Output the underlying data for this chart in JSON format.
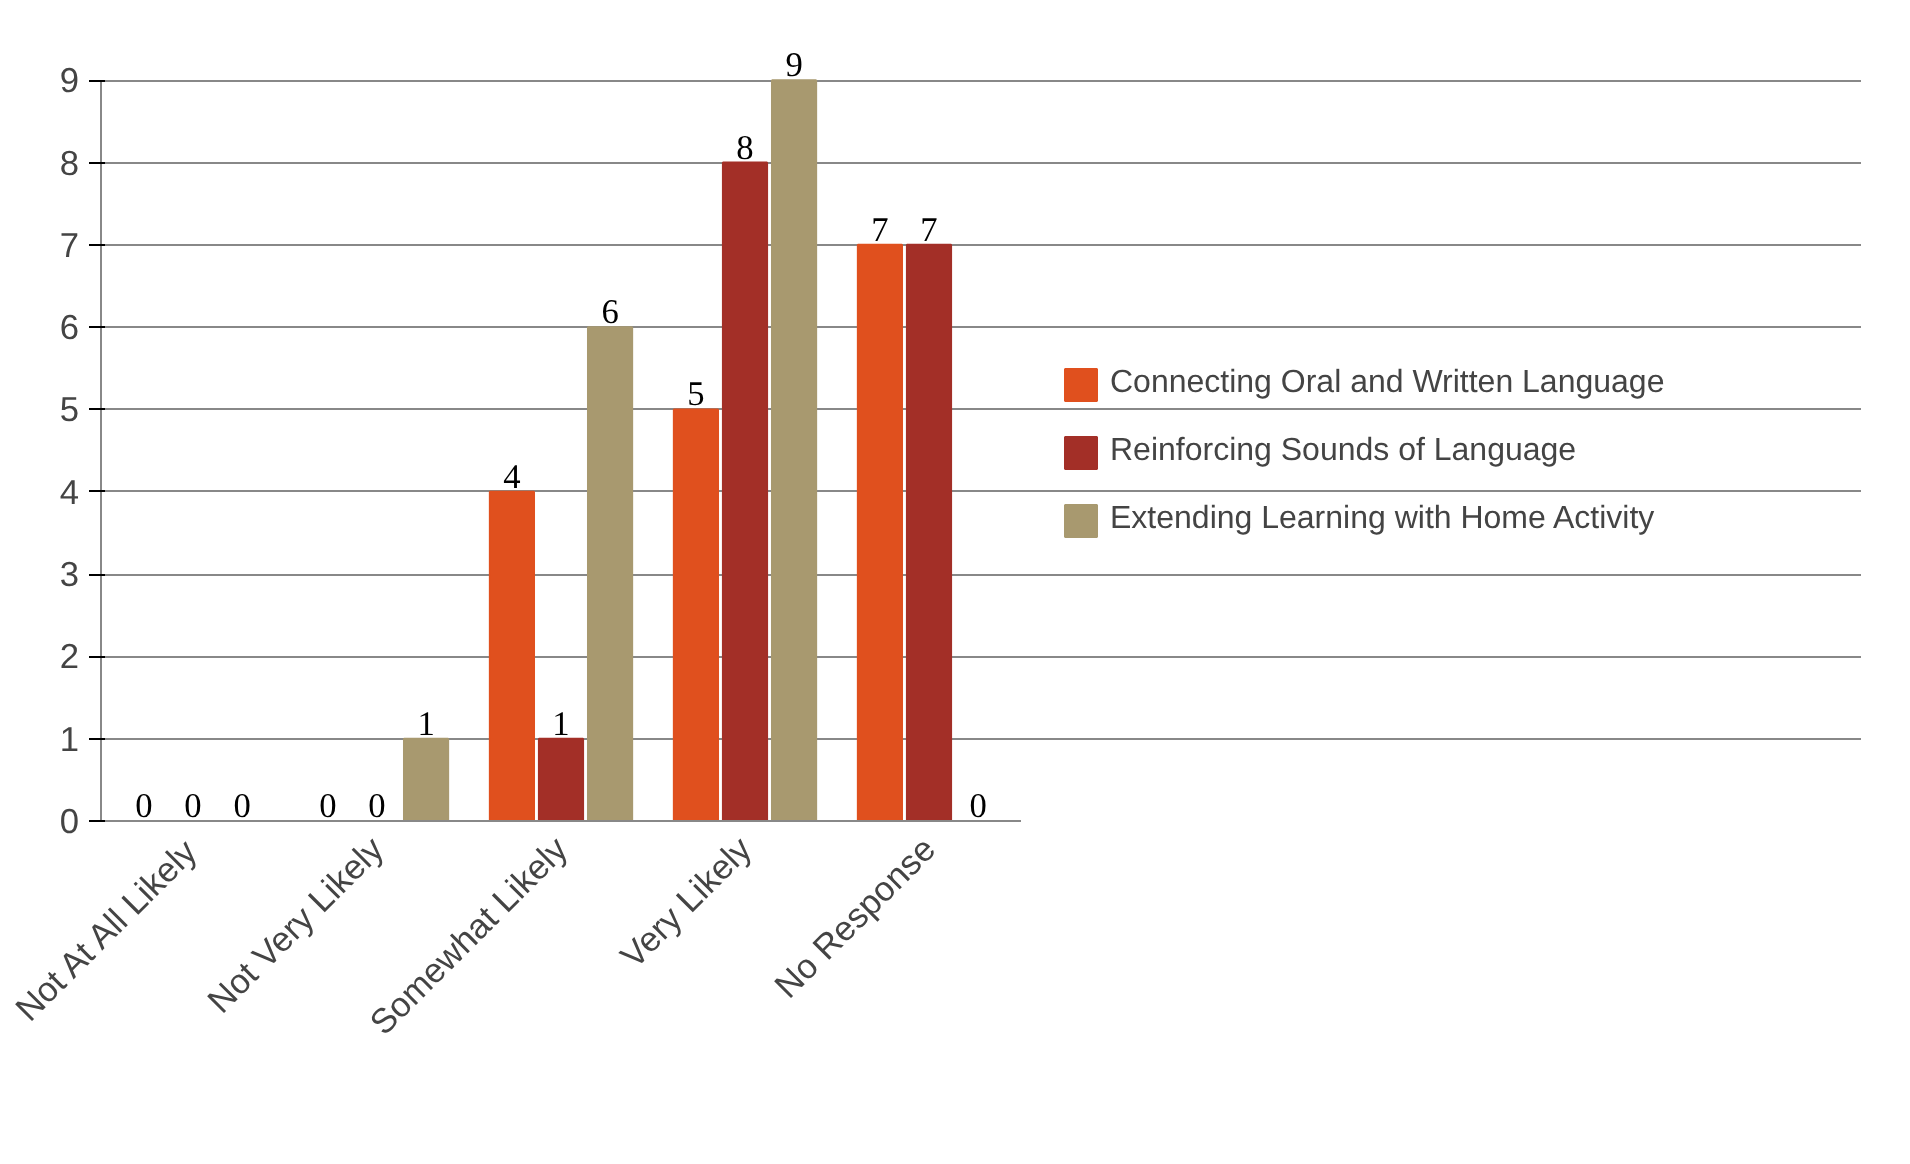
{
  "chart_data": {
    "type": "bar",
    "categories": [
      "Not At All Likely",
      "Not Very Likely",
      "Somewhat Likely",
      "Very Likely",
      "No Response"
    ],
    "series": [
      {
        "name": "Connecting Oral and Written Language",
        "color": "#e0501e",
        "values": [
          0,
          0,
          4,
          5,
          7
        ]
      },
      {
        "name": "Reinforcing Sounds of Language",
        "color": "#a32f27",
        "values": [
          0,
          0,
          1,
          8,
          7
        ]
      },
      {
        "name": "Extending Learning with Home Activity",
        "color": "#a8996f",
        "values": [
          0,
          1,
          6,
          9,
          0
        ]
      }
    ],
    "ylim": [
      0,
      9
    ],
    "yticks": [
      0,
      1,
      2,
      3,
      4,
      5,
      6,
      7,
      8,
      9
    ],
    "grid": "y",
    "legend": "right",
    "data_labels": true
  }
}
